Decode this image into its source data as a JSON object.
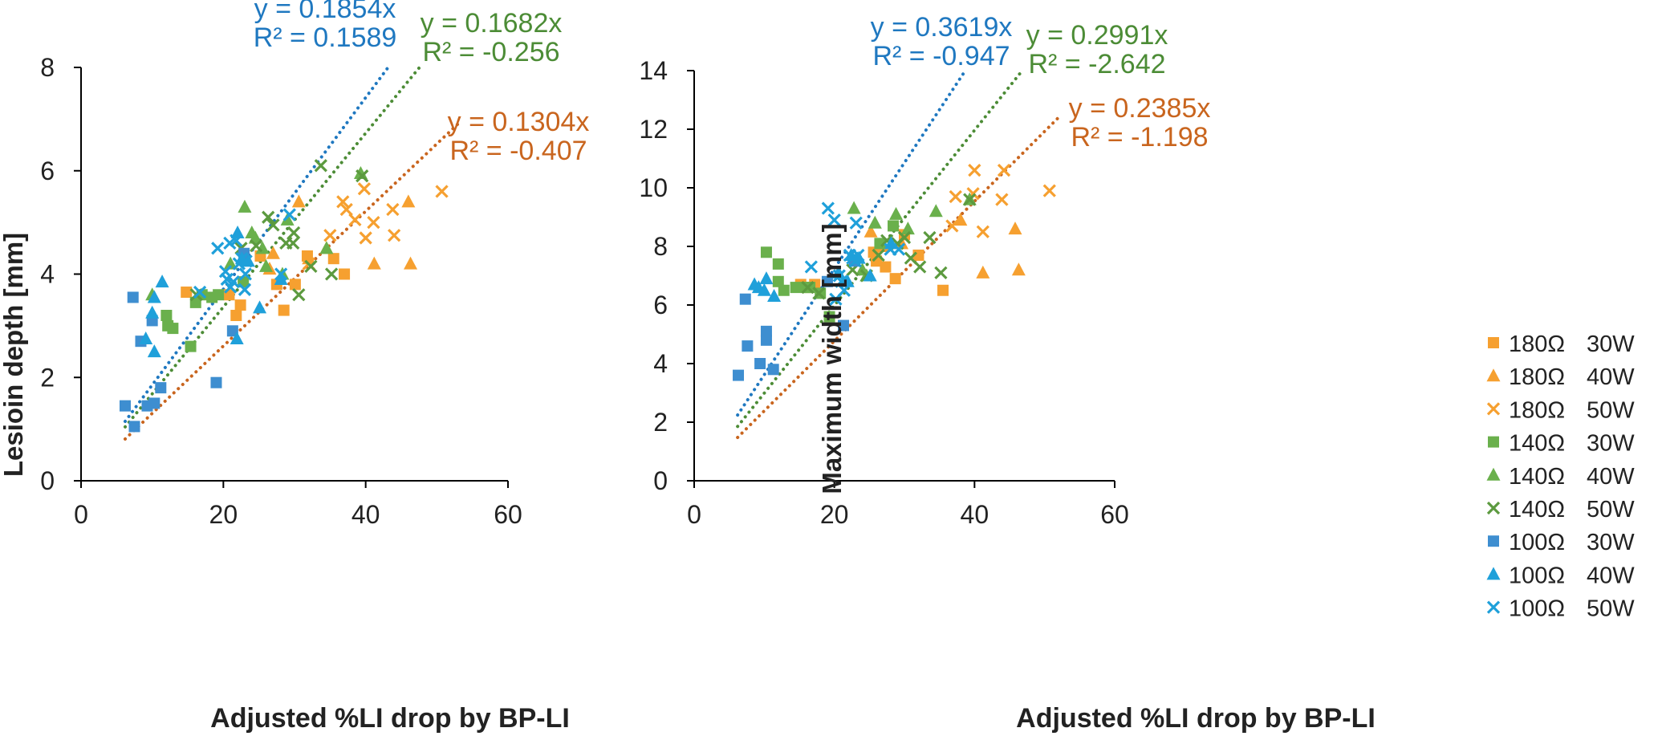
{
  "chart_data": [
    {
      "type": "scatter",
      "xlabel": "Adjusted %LI drop by BP-LI",
      "ylabel": "Lesioin depth [mm]",
      "xlim": [
        0,
        60
      ],
      "ylim": [
        0,
        8
      ],
      "xticks": [
        "0",
        "20",
        "40",
        "60"
      ],
      "yticks": [
        "0",
        "2",
        "4",
        "6",
        "8"
      ],
      "series": [
        {
          "name": "180Ω 30W",
          "group": "180Ω",
          "power": "30W",
          "marker": "square",
          "color": "#F6A030",
          "points": [
            [
              14.8,
              3.65
            ],
            [
              20.8,
              3.6
            ],
            [
              21.8,
              3.2
            ],
            [
              22.4,
              3.4
            ],
            [
              25.2,
              4.35
            ],
            [
              27.5,
              3.8
            ],
            [
              28.5,
              3.3
            ],
            [
              30.1,
              3.8
            ],
            [
              31.8,
              4.35
            ],
            [
              35.5,
              4.3
            ],
            [
              37.0,
              4.0
            ]
          ]
        },
        {
          "name": "180Ω 40W",
          "group": "180Ω",
          "power": "40W",
          "marker": "triangle",
          "color": "#F6A030",
          "points": [
            [
              26.5,
              4.1
            ],
            [
              27.0,
              4.4
            ],
            [
              30.6,
              5.4
            ],
            [
              32.0,
              4.3
            ],
            [
              34.5,
              4.5
            ],
            [
              41.2,
              4.2
            ],
            [
              46.0,
              5.4
            ],
            [
              46.3,
              4.2
            ]
          ]
        },
        {
          "name": "180Ω 50W",
          "group": "180Ω",
          "power": "50W",
          "marker": "x",
          "color": "#F6A030",
          "points": [
            [
              32.0,
              4.2
            ],
            [
              35.0,
              4.75
            ],
            [
              36.8,
              5.4
            ],
            [
              37.3,
              5.25
            ],
            [
              38.5,
              5.05
            ],
            [
              39.8,
              5.65
            ],
            [
              40.0,
              4.7
            ],
            [
              41.1,
              5.0
            ],
            [
              43.8,
              5.25
            ],
            [
              44.0,
              4.75
            ],
            [
              50.7,
              5.6
            ]
          ]
        },
        {
          "name": "140Ω 30W",
          "group": "140Ω",
          "power": "30W",
          "marker": "square",
          "color": "#6AB04C",
          "points": [
            [
              12.0,
              3.2
            ],
            [
              12.2,
              3.0
            ],
            [
              12.9,
              2.95
            ],
            [
              15.4,
              2.6
            ],
            [
              16.1,
              3.45
            ],
            [
              17.0,
              3.6
            ],
            [
              18.4,
              3.55
            ],
            [
              19.3,
              3.6
            ],
            [
              22.8,
              3.85
            ]
          ]
        },
        {
          "name": "140Ω 40W",
          "group": "140Ω",
          "power": "40W",
          "marker": "triangle",
          "color": "#6AB04C",
          "points": [
            [
              10.0,
              3.6
            ],
            [
              21.0,
              4.2
            ],
            [
              23.0,
              5.3
            ],
            [
              24.0,
              4.8
            ],
            [
              24.5,
              4.7
            ],
            [
              25.5,
              4.5
            ],
            [
              26.0,
              4.15
            ],
            [
              28.3,
              4.0
            ],
            [
              29.0,
              5.05
            ],
            [
              34.5,
              4.5
            ],
            [
              39.3,
              5.95
            ]
          ]
        },
        {
          "name": "140Ω 50W",
          "group": "140Ω",
          "power": "50W",
          "marker": "x",
          "color": "#5C9A3F",
          "points": [
            [
              16.2,
              3.6
            ],
            [
              22.5,
              4.5
            ],
            [
              24.6,
              4.55
            ],
            [
              26.3,
              5.1
            ],
            [
              27.0,
              4.95
            ],
            [
              28.8,
              4.6
            ],
            [
              29.8,
              4.6
            ],
            [
              29.9,
              4.8
            ],
            [
              30.6,
              3.6
            ],
            [
              32.3,
              4.15
            ],
            [
              33.7,
              6.1
            ],
            [
              35.2,
              4.0
            ],
            [
              39.5,
              5.9
            ]
          ]
        },
        {
          "name": "100Ω 30W",
          "group": "100Ω",
          "power": "30W",
          "marker": "square",
          "color": "#3E8ED0",
          "points": [
            [
              6.2,
              1.45
            ],
            [
              7.3,
              3.55
            ],
            [
              7.5,
              1.05
            ],
            [
              8.4,
              2.7
            ],
            [
              9.3,
              1.45
            ],
            [
              10.0,
              3.1
            ],
            [
              10.3,
              1.5
            ],
            [
              11.2,
              1.8
            ],
            [
              19.0,
              1.9
            ],
            [
              21.3,
              2.9
            ],
            [
              22.9,
              4.4
            ]
          ]
        },
        {
          "name": "100Ω 40W",
          "group": "100Ω",
          "power": "40W",
          "marker": "triangle",
          "color": "#1FA0DA",
          "points": [
            [
              9.1,
              2.75
            ],
            [
              10.0,
              3.25
            ],
            [
              10.3,
              3.55
            ],
            [
              10.3,
              2.5
            ],
            [
              11.4,
              3.85
            ],
            [
              21.9,
              2.75
            ],
            [
              22.0,
              4.8
            ],
            [
              22.6,
              4.3
            ],
            [
              23.5,
              4.25
            ],
            [
              25.1,
              3.35
            ],
            [
              28.1,
              3.9
            ]
          ]
        },
        {
          "name": "100Ω 50W",
          "group": "100Ω",
          "power": "50W",
          "marker": "x",
          "color": "#1FA0DA",
          "points": [
            [
              16.7,
              3.65
            ],
            [
              19.2,
              4.5
            ],
            [
              20.3,
              4.05
            ],
            [
              20.5,
              3.9
            ],
            [
              20.9,
              4.6
            ],
            [
              21.0,
              3.75
            ],
            [
              21.4,
              3.85
            ],
            [
              21.8,
              4.65
            ],
            [
              22.2,
              4.2
            ],
            [
              22.6,
              4.3
            ],
            [
              23.0,
              3.7
            ],
            [
              23.1,
              4.0
            ],
            [
              23.2,
              4.25
            ],
            [
              28.1,
              4.0
            ],
            [
              29.3,
              5.15
            ]
          ]
        }
      ],
      "trendlines": [
        {
          "group": "100Ω",
          "color": "#1F78C0",
          "slope": 0.1854,
          "x_range": [
            6.2,
            43.2
          ],
          "equation": "y = 0.1854x",
          "r2": "R² = 0.1589"
        },
        {
          "group": "140Ω",
          "color": "#4C8C36",
          "slope": 0.1682,
          "x_range": [
            6.2,
            47.6
          ],
          "equation": "y = 0.1682x",
          "r2": "R² = -0.256"
        },
        {
          "group": "180Ω",
          "color": "#C9651E",
          "slope": 0.1304,
          "x_range": [
            6.2,
            53.0
          ],
          "equation": "y = 0.1304x",
          "r2": "R² = -0.407"
        }
      ]
    },
    {
      "type": "scatter",
      "xlabel": "Adjusted %LI drop by BP-LI",
      "ylabel": "Maximum width [mm]",
      "xlim": [
        0,
        60
      ],
      "ylim": [
        0,
        14
      ],
      "xticks": [
        "0",
        "20",
        "40",
        "60"
      ],
      "yticks": [
        "0",
        "2",
        "4",
        "6",
        "8",
        "10",
        "12",
        "14"
      ],
      "series": [
        {
          "name": "180Ω 30W",
          "group": "180Ω",
          "power": "30W",
          "marker": "square",
          "color": "#F6A030",
          "points": [
            [
              15.2,
              6.7
            ],
            [
              16.5,
              6.6
            ],
            [
              17.2,
              6.7
            ],
            [
              25.6,
              7.8
            ],
            [
              26.0,
              7.5
            ],
            [
              27.3,
              7.3
            ],
            [
              28.7,
              6.9
            ],
            [
              30.0,
              8.4
            ],
            [
              32.0,
              7.7
            ],
            [
              35.5,
              6.5
            ]
          ]
        },
        {
          "name": "180Ω 40W",
          "group": "180Ω",
          "power": "40W",
          "marker": "triangle",
          "color": "#F6A030",
          "points": [
            [
              25.2,
              8.5
            ],
            [
              27.0,
              8.0
            ],
            [
              29.6,
              8.1
            ],
            [
              38.0,
              8.9
            ],
            [
              41.2,
              7.1
            ],
            [
              45.8,
              8.6
            ],
            [
              46.3,
              7.2
            ]
          ]
        },
        {
          "name": "180Ω 50W",
          "group": "180Ω",
          "power": "50W",
          "marker": "x",
          "color": "#F6A030",
          "points": [
            [
              36.8,
              8.7
            ],
            [
              37.3,
              9.7
            ],
            [
              39.8,
              9.8
            ],
            [
              40.0,
              10.6
            ],
            [
              41.2,
              8.5
            ],
            [
              43.9,
              9.6
            ],
            [
              44.2,
              10.6
            ],
            [
              50.7,
              9.9
            ]
          ]
        },
        {
          "name": "140Ω 30W",
          "group": "140Ω",
          "power": "30W",
          "marker": "square",
          "color": "#6AB04C",
          "points": [
            [
              10.3,
              7.8
            ],
            [
              12.0,
              7.4
            ],
            [
              12.0,
              6.8
            ],
            [
              12.8,
              6.5
            ],
            [
              14.5,
              6.6
            ],
            [
              16.0,
              6.6
            ],
            [
              16.5,
              6.6
            ],
            [
              18.0,
              6.4
            ],
            [
              19.3,
              5.6
            ],
            [
              26.5,
              8.1
            ],
            [
              28.4,
              8.7
            ]
          ]
        },
        {
          "name": "140Ω 40W",
          "group": "140Ω",
          "power": "40W",
          "marker": "triangle",
          "color": "#6AB04C",
          "points": [
            [
              22.8,
              9.3
            ],
            [
              24.0,
              7.2
            ],
            [
              24.6,
              7.0
            ],
            [
              25.8,
              8.8
            ],
            [
              28.8,
              9.1
            ],
            [
              30.5,
              8.6
            ],
            [
              34.5,
              9.2
            ],
            [
              39.3,
              9.6
            ]
          ]
        },
        {
          "name": "140Ω 50W",
          "group": "140Ω",
          "power": "50W",
          "marker": "x",
          "color": "#5C9A3F",
          "points": [
            [
              16.2,
              6.6
            ],
            [
              17.8,
              6.4
            ],
            [
              22.6,
              7.2
            ],
            [
              24.6,
              7.0
            ],
            [
              26.3,
              7.7
            ],
            [
              27.5,
              8.2
            ],
            [
              29.0,
              8.1
            ],
            [
              30.0,
              8.3
            ],
            [
              30.9,
              7.6
            ],
            [
              32.2,
              7.3
            ],
            [
              33.6,
              8.3
            ],
            [
              35.2,
              7.1
            ],
            [
              39.3,
              9.6
            ]
          ]
        },
        {
          "name": "100Ω 30W",
          "group": "100Ω",
          "power": "30W",
          "marker": "square",
          "color": "#3E8ED0",
          "points": [
            [
              6.3,
              3.6
            ],
            [
              7.3,
              6.2
            ],
            [
              7.6,
              4.6
            ],
            [
              9.4,
              4.0
            ],
            [
              10.3,
              5.1
            ],
            [
              10.3,
              4.8
            ],
            [
              11.3,
              3.8
            ],
            [
              19.0,
              6.8
            ],
            [
              21.3,
              5.3
            ],
            [
              22.9,
              7.5
            ]
          ]
        },
        {
          "name": "100Ω 40W",
          "group": "100Ω",
          "power": "40W",
          "marker": "triangle",
          "color": "#1FA0DA",
          "points": [
            [
              8.6,
              6.7
            ],
            [
              9.2,
              6.6
            ],
            [
              10.0,
              6.5
            ],
            [
              10.3,
              6.9
            ],
            [
              11.4,
              6.3
            ],
            [
              20.6,
              7.1
            ],
            [
              21.9,
              6.8
            ],
            [
              22.4,
              7.7
            ],
            [
              23.5,
              7.6
            ],
            [
              25.1,
              7.0
            ],
            [
              28.1,
              8.1
            ]
          ]
        },
        {
          "name": "100Ω 50W",
          "group": "100Ω",
          "power": "50W",
          "marker": "x",
          "color": "#1FA0DA",
          "points": [
            [
              16.7,
              7.3
            ],
            [
              19.1,
              9.3
            ],
            [
              20.0,
              8.9
            ],
            [
              20.2,
              6.2
            ],
            [
              20.7,
              7.0
            ],
            [
              21.0,
              6.8
            ],
            [
              21.4,
              6.5
            ],
            [
              22.2,
              7.7
            ],
            [
              22.6,
              7.6
            ],
            [
              23.0,
              7.5
            ],
            [
              23.1,
              8.8
            ],
            [
              23.4,
              7.7
            ],
            [
              28.0,
              7.9
            ],
            [
              29.2,
              7.9
            ]
          ]
        }
      ],
      "trendlines": [
        {
          "group": "100Ω",
          "color": "#1F78C0",
          "slope": 0.3619,
          "x_range": [
            6.2,
            38.7
          ],
          "equation": "y = 0.3619x",
          "r2": "R² = -0.947"
        },
        {
          "group": "140Ω",
          "color": "#4C8C36",
          "slope": 0.2991,
          "x_range": [
            6.2,
            46.8
          ],
          "equation": "y = 0.2991x",
          "r2": "R² = -2.642"
        },
        {
          "group": "180Ω",
          "color": "#C9651E",
          "slope": 0.2385,
          "x_range": [
            6.2,
            52.4
          ],
          "equation": "y = 0.2385x",
          "r2": "R² = -1.198"
        }
      ]
    }
  ],
  "legend": {
    "placement": "right",
    "entries": [
      {
        "group": "180Ω",
        "power": "30W",
        "marker": "square",
        "color": "#F6A030"
      },
      {
        "group": "180Ω",
        "power": "40W",
        "marker": "triangle",
        "color": "#F6A030"
      },
      {
        "group": "180Ω",
        "power": "50W",
        "marker": "x",
        "color": "#F6A030"
      },
      {
        "group": "140Ω",
        "power": "30W",
        "marker": "square",
        "color": "#6AB04C"
      },
      {
        "group": "140Ω",
        "power": "40W",
        "marker": "triangle",
        "color": "#6AB04C"
      },
      {
        "group": "140Ω",
        "power": "50W",
        "marker": "x",
        "color": "#5C9A3F"
      },
      {
        "group": "100Ω",
        "power": "30W",
        "marker": "square",
        "color": "#3E8ED0"
      },
      {
        "group": "100Ω",
        "power": "40W",
        "marker": "triangle",
        "color": "#1FA0DA"
      },
      {
        "group": "100Ω",
        "power": "50W",
        "marker": "x",
        "color": "#1FA0DA"
      }
    ]
  }
}
